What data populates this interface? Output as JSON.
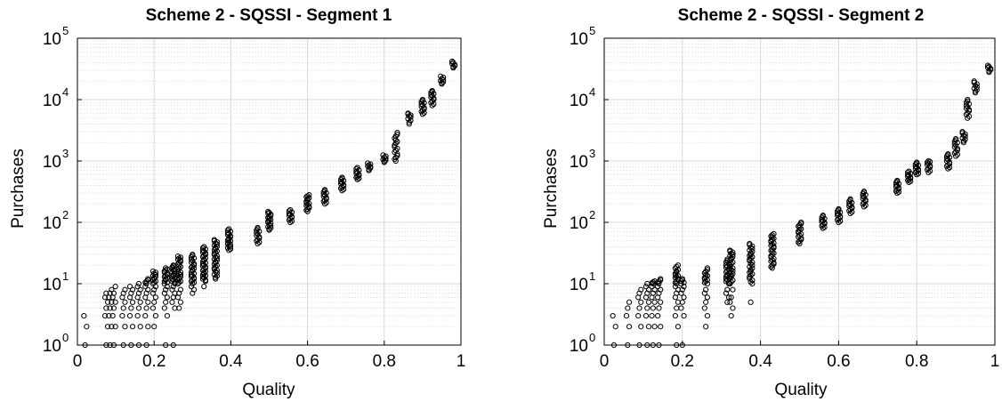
{
  "chart_data": [
    {
      "type": "scatter",
      "title": "Scheme 2 - SQSSI - Segment 1",
      "xlabel": "Quality",
      "ylabel": "Purchases",
      "xlim": [
        0,
        1
      ],
      "ylim": [
        1,
        100000
      ],
      "yscale": "log",
      "grid": true,
      "minor_grid": true,
      "marker": "open-circle",
      "x_ticks": [
        "0",
        "0.2",
        "0.4",
        "0.6",
        "0.8",
        "1"
      ],
      "x_tick_values": [
        0,
        0.2,
        0.4,
        0.6,
        0.8,
        1
      ],
      "y_ticks": [
        {
          "base": "10",
          "exp": "0"
        },
        {
          "base": "10",
          "exp": "1"
        },
        {
          "base": "10",
          "exp": "2"
        },
        {
          "base": "10",
          "exp": "3"
        },
        {
          "base": "10",
          "exp": "4"
        },
        {
          "base": "10",
          "exp": "5"
        }
      ],
      "y_tick_values": [
        1,
        10,
        100,
        1000,
        10000,
        100000
      ],
      "clusters": [
        {
          "x": 0.02,
          "y": [
            1,
            2,
            3
          ]
        },
        {
          "x": 0.075,
          "y": [
            1,
            2,
            3,
            4,
            5,
            6,
            7
          ]
        },
        {
          "x": 0.085,
          "y": [
            1,
            2,
            3,
            4,
            5,
            6,
            7,
            8
          ]
        },
        {
          "x": 0.095,
          "y": [
            1,
            2,
            3,
            4,
            5,
            6,
            7,
            9
          ]
        },
        {
          "x": 0.12,
          "y": [
            1,
            2,
            3,
            4,
            5,
            6,
            7,
            8
          ]
        },
        {
          "x": 0.14,
          "y": [
            1,
            2,
            3,
            4,
            5,
            6,
            7,
            8,
            9
          ]
        },
        {
          "x": 0.16,
          "y": [
            1,
            2,
            3,
            4,
            5,
            6,
            7,
            8,
            9,
            10
          ]
        },
        {
          "x": 0.18,
          "y": [
            1,
            2,
            3,
            4,
            5,
            6,
            7,
            8,
            9,
            10,
            12
          ]
        },
        {
          "x": 0.2,
          "y": [
            2,
            3,
            4,
            5,
            6,
            7,
            8,
            9,
            10,
            12,
            14,
            16
          ]
        },
        {
          "x": 0.23,
          "y": [
            1,
            3,
            4,
            5,
            6,
            7,
            8,
            9,
            10,
            12,
            14,
            16,
            18
          ]
        },
        {
          "x": 0.25,
          "y": [
            1,
            4,
            5,
            6,
            7,
            8,
            9,
            10,
            12,
            14,
            16,
            18,
            20
          ]
        },
        {
          "x": 0.265,
          "y": [
            4,
            5,
            6,
            7,
            8,
            10,
            12,
            14,
            16,
            20,
            24,
            28
          ]
        },
        {
          "x": 0.3,
          "y": [
            7,
            8,
            9,
            10,
            12,
            14,
            17,
            20,
            25,
            30
          ]
        },
        {
          "x": 0.33,
          "y": [
            9,
            11,
            13,
            15,
            18,
            21,
            25,
            30,
            35,
            40
          ]
        },
        {
          "x": 0.36,
          "y": [
            12,
            15,
            18,
            22,
            26,
            31,
            37,
            44,
            52
          ]
        },
        {
          "x": 0.395,
          "y": [
            35,
            40,
            46,
            53,
            60,
            68,
            78
          ]
        },
        {
          "x": 0.47,
          "y": [
            45,
            55,
            68,
            82
          ]
        },
        {
          "x": 0.5,
          "y": [
            75,
            88,
            100,
            115,
            130,
            150
          ]
        },
        {
          "x": 0.555,
          "y": [
            100,
            120,
            140,
            160
          ]
        },
        {
          "x": 0.6,
          "y": [
            150,
            180,
            210,
            240,
            280
          ]
        },
        {
          "x": 0.645,
          "y": [
            200,
            240,
            290,
            340
          ]
        },
        {
          "x": 0.69,
          "y": [
            330,
            390,
            460,
            540
          ]
        },
        {
          "x": 0.73,
          "y": [
            500,
            580,
            680,
            780
          ]
        },
        {
          "x": 0.76,
          "y": [
            700,
            800,
            920
          ]
        },
        {
          "x": 0.8,
          "y": [
            950,
            1100,
            1250
          ]
        },
        {
          "x": 0.83,
          "y": [
            1000,
            1300,
            1700,
            2200,
            2900
          ]
        },
        {
          "x": 0.865,
          "y": [
            4000,
            5200,
            6000
          ]
        },
        {
          "x": 0.9,
          "y": [
            5800,
            7000,
            8500,
            10000
          ]
        },
        {
          "x": 0.925,
          "y": [
            8000,
            10000,
            12000,
            14000
          ]
        },
        {
          "x": 0.95,
          "y": [
            18000,
            21000,
            24000
          ]
        },
        {
          "x": 0.98,
          "y": [
            33000,
            37000,
            42000
          ]
        }
      ]
    },
    {
      "type": "scatter",
      "title": "Scheme 2 - SQSSI - Segment 2",
      "xlabel": "Quality",
      "ylabel": "Purchases",
      "xlim": [
        0,
        1
      ],
      "ylim": [
        1,
        100000
      ],
      "yscale": "log",
      "grid": true,
      "minor_grid": true,
      "marker": "open-circle",
      "x_ticks": [
        "0",
        "0.2",
        "0.4",
        "0.6",
        "0.8",
        "1"
      ],
      "x_tick_values": [
        0,
        0.2,
        0.4,
        0.6,
        0.8,
        1
      ],
      "y_ticks": [
        {
          "base": "10",
          "exp": "0"
        },
        {
          "base": "10",
          "exp": "1"
        },
        {
          "base": "10",
          "exp": "2"
        },
        {
          "base": "10",
          "exp": "3"
        },
        {
          "base": "10",
          "exp": "4"
        },
        {
          "base": "10",
          "exp": "5"
        }
      ],
      "y_tick_values": [
        1,
        10,
        100,
        1000,
        10000,
        100000
      ],
      "clusters": [
        {
          "x": 0.025,
          "y": [
            1,
            2,
            3
          ]
        },
        {
          "x": 0.06,
          "y": [
            1,
            2,
            3,
            4,
            5
          ]
        },
        {
          "x": 0.09,
          "y": [
            1,
            2,
            3,
            4,
            5,
            6,
            7,
            8
          ]
        },
        {
          "x": 0.11,
          "y": [
            1,
            2,
            3,
            4,
            5,
            6,
            7,
            8,
            9,
            10
          ]
        },
        {
          "x": 0.125,
          "y": [
            1,
            2,
            3,
            4,
            5,
            6,
            7,
            8,
            9,
            10,
            11
          ]
        },
        {
          "x": 0.14,
          "y": [
            1,
            2,
            3,
            4,
            5,
            6,
            7,
            8,
            9,
            10,
            12
          ]
        },
        {
          "x": 0.185,
          "y": [
            1,
            2,
            3,
            4,
            5,
            6,
            7,
            8,
            9,
            10,
            12,
            14,
            16,
            20
          ]
        },
        {
          "x": 0.2,
          "y": [
            1,
            3,
            4,
            5,
            6,
            7,
            8,
            9,
            10,
            12
          ]
        },
        {
          "x": 0.26,
          "y": [
            2,
            3,
            4,
            5,
            6,
            7,
            8,
            10,
            12,
            14,
            18
          ]
        },
        {
          "x": 0.315,
          "y": [
            5,
            6,
            7,
            8,
            10,
            12,
            14,
            17,
            20,
            25
          ]
        },
        {
          "x": 0.325,
          "y": [
            3,
            4,
            5,
            6,
            8,
            10,
            13,
            16,
            20,
            25,
            30,
            35
          ]
        },
        {
          "x": 0.375,
          "y": [
            5,
            10,
            13,
            16,
            20,
            25,
            30,
            37,
            45
          ]
        },
        {
          "x": 0.43,
          "y": [
            18,
            22,
            27,
            33,
            40,
            48,
            57,
            65
          ]
        },
        {
          "x": 0.5,
          "y": [
            45,
            55,
            68,
            82,
            100
          ]
        },
        {
          "x": 0.56,
          "y": [
            80,
            95,
            110,
            130
          ]
        },
        {
          "x": 0.6,
          "y": [
            100,
            120,
            140,
            165
          ]
        },
        {
          "x": 0.63,
          "y": [
            140,
            170,
            200,
            240
          ]
        },
        {
          "x": 0.665,
          "y": [
            180,
            220,
            270,
            320
          ]
        },
        {
          "x": 0.75,
          "y": [
            300,
            350,
            410,
            480
          ]
        },
        {
          "x": 0.78,
          "y": [
            450,
            520,
            600,
            680
          ]
        },
        {
          "x": 0.8,
          "y": [
            600,
            700,
            820,
            950
          ]
        },
        {
          "x": 0.83,
          "y": [
            650,
            800,
            950,
            1000
          ]
        },
        {
          "x": 0.88,
          "y": [
            750,
            900,
            1100,
            1300
          ]
        },
        {
          "x": 0.9,
          "y": [
            1200,
            1500,
            1900,
            2300
          ]
        },
        {
          "x": 0.92,
          "y": [
            2000,
            2500,
            3000
          ]
        },
        {
          "x": 0.93,
          "y": [
            5000,
            6500,
            8000,
            10000
          ]
        },
        {
          "x": 0.95,
          "y": [
            13000,
            16000,
            20000
          ]
        },
        {
          "x": 0.985,
          "y": [
            28000,
            32000,
            36000
          ]
        }
      ]
    }
  ]
}
